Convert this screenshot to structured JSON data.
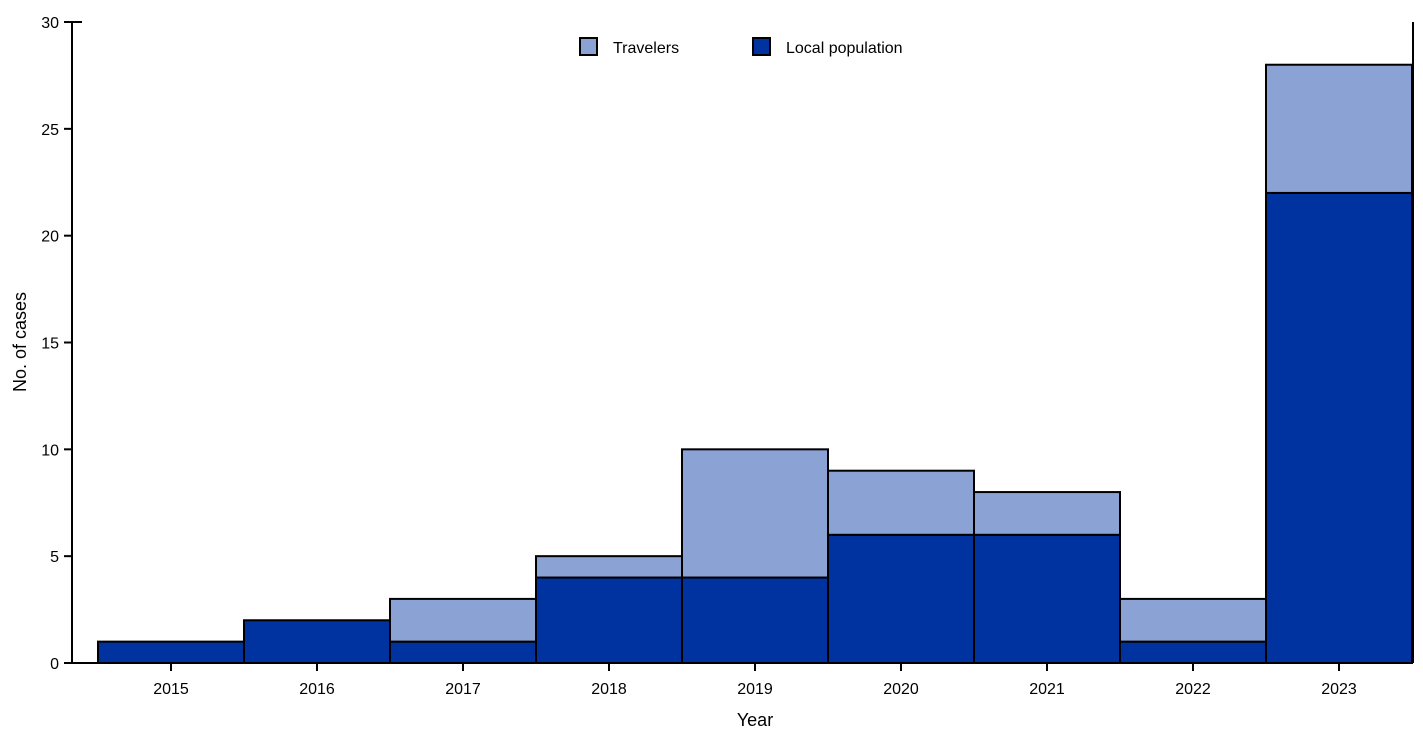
{
  "chart_data": {
    "type": "bar",
    "stacked": true,
    "categories": [
      "2015",
      "2016",
      "2017",
      "2018",
      "2019",
      "2020",
      "2021",
      "2022",
      "2023"
    ],
    "series": [
      {
        "name": "Local population",
        "values": [
          1,
          2,
          1,
          4,
          4,
          6,
          6,
          1,
          22
        ],
        "color": "#0033a0"
      },
      {
        "name": "Travelers",
        "values": [
          0,
          0,
          2,
          1,
          6,
          3,
          2,
          2,
          6
        ],
        "color": "#8aa2d4"
      }
    ],
    "legend_order": [
      "Travelers",
      "Local population"
    ],
    "legend_position": "top-center",
    "xlabel": "Year",
    "ylabel": "No. of cases",
    "ylim": [
      0,
      30
    ],
    "yticks": [
      0,
      5,
      10,
      15,
      20,
      25,
      30
    ],
    "grid": false
  }
}
